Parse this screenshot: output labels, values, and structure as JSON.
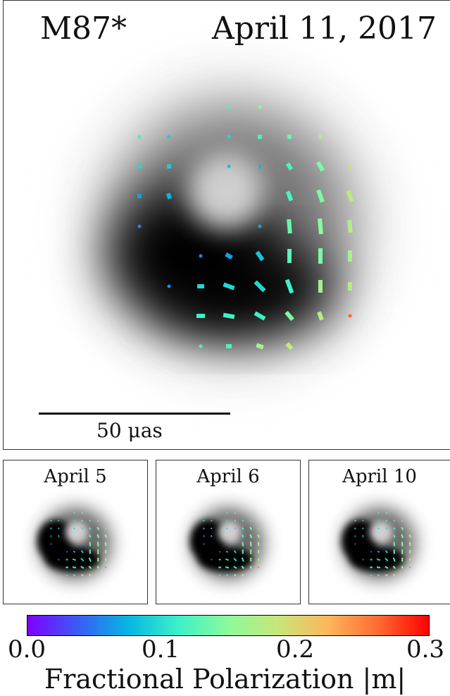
{
  "main": {
    "source_label": "M87*",
    "date_label": "April 11, 2017",
    "scalebar_label": "50 μas"
  },
  "small_panels": [
    {
      "label": "April 5"
    },
    {
      "label": "April 6"
    },
    {
      "label": "April 10"
    }
  ],
  "colorbar": {
    "label": "Fractional Polarization |m|",
    "ticks": [
      "0.0",
      "0.1",
      "0.2",
      "0.3"
    ],
    "min": 0.0,
    "max": 0.3,
    "colormap": [
      "#7f00ff",
      "#3b5bf6",
      "#06b6e2",
      "#3cf0c8",
      "#8cfa9b",
      "#c8e67a",
      "#ffb55a",
      "#ff6a32",
      "#ff0000"
    ]
  }
}
